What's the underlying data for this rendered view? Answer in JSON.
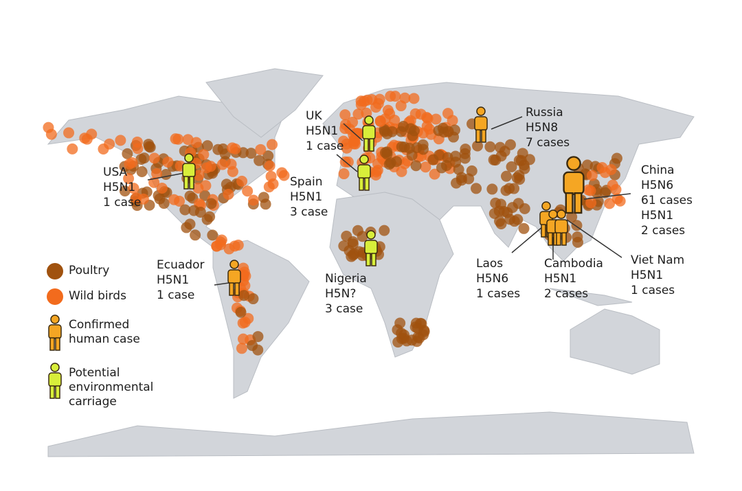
{
  "legend": [
    "Poultry",
    "Wild birds",
    "Confirmed human case",
    "Potential environmental carriage"
  ],
  "annotations": [
    {
      "lines": [
        "USA",
        "H5N1",
        "1 case"
      ]
    },
    {
      "lines": [
        "UK",
        "H5N1",
        "1 case"
      ]
    },
    {
      "lines": [
        "Spain",
        "H5N1",
        "3 case"
      ]
    },
    {
      "lines": [
        "Russia",
        "H5N8",
        "7 cases"
      ]
    },
    {
      "lines": [
        "China",
        "H5N6",
        "61 cases",
        "H5N1",
        "2 cases"
      ]
    },
    {
      "lines": [
        "Ecuador",
        "H5N1",
        "1 case"
      ]
    },
    {
      "lines": [
        "Nigeria",
        "H5N?",
        "3 case"
      ]
    },
    {
      "lines": [
        "Laos",
        "H5N6",
        "1 cases"
      ]
    },
    {
      "lines": [
        "Cambodia",
        "H5N1",
        "2 cases"
      ]
    },
    {
      "lines": [
        "Viet Nam",
        "H5N1",
        "1 cases"
      ]
    }
  ]
}
